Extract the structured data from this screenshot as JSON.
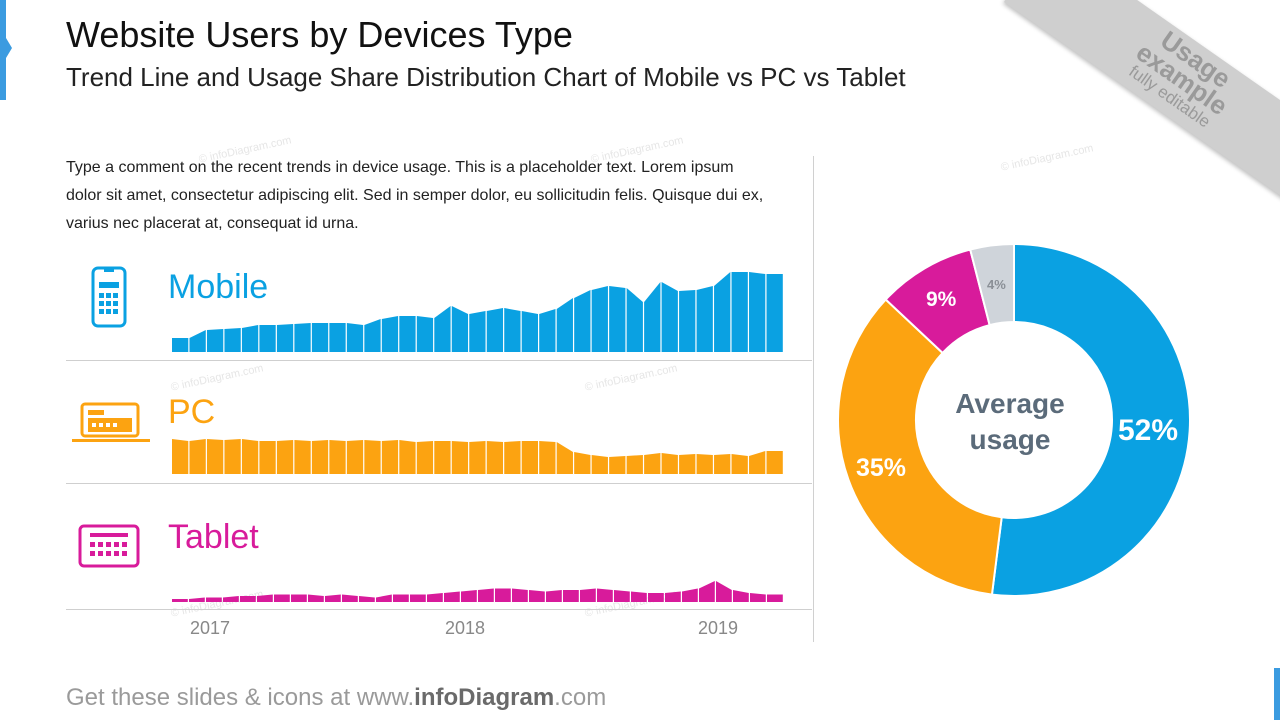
{
  "header": {
    "title": "Website Users by Devices Type",
    "subtitle": "Trend Line and Usage Share Distribution Chart of Mobile vs PC vs Tablet"
  },
  "ribbon": {
    "line1": "Usage",
    "line2": "example",
    "line3": "fully editable"
  },
  "comment": "Type a comment on the recent trends in device usage. This is a placeholder text. Lorem ipsum dolor sit amet, consectetur adipiscing elit. Sed in semper dolor, eu sollicitudin felis. Quisque dui ex, varius nec placerat at, consequat id urna.",
  "watermark": "© infoDiagram.com",
  "devices": {
    "mobile": {
      "label": "Mobile",
      "color": "#0aa1e2",
      "icon": "smartphone-icon"
    },
    "pc": {
      "label": "PC",
      "color": "#fca311",
      "icon": "laptop-icon"
    },
    "tablet": {
      "label": "Tablet",
      "color": "#d81b9b",
      "icon": "tablet-icon"
    }
  },
  "years": [
    "2017",
    "2018",
    "2019"
  ],
  "donut": {
    "center_line1": "Average",
    "center_line2": "usage"
  },
  "footer": {
    "prefix": "Get these slides & icons at www.",
    "brand": "infoDiagram",
    "suffix": ".com"
  },
  "chart_data": [
    {
      "type": "area",
      "title": "Mobile",
      "x_ticks": [
        "2017",
        "2018",
        "2019"
      ],
      "series": [
        {
          "name": "Mobile",
          "color": "#0aa1e2",
          "values": [
            14,
            14,
            22,
            23,
            24,
            27,
            27,
            28,
            29,
            29,
            29,
            27,
            33,
            36,
            36,
            34,
            46,
            38,
            41,
            44,
            41,
            38,
            43,
            54,
            62,
            66,
            64,
            50,
            70,
            61,
            62,
            66,
            80,
            80,
            78
          ]
        }
      ]
    },
    {
      "type": "area",
      "title": "PC",
      "series": [
        {
          "name": "PC",
          "color": "#fca311",
          "values": [
            35,
            33,
            35,
            34,
            35,
            33,
            33,
            34,
            33,
            34,
            33,
            34,
            33,
            34,
            32,
            33,
            33,
            32,
            33,
            32,
            33,
            33,
            32,
            22,
            19,
            17,
            18,
            19,
            21,
            19,
            20,
            19,
            20,
            18,
            23
          ]
        }
      ]
    },
    {
      "type": "area",
      "title": "Tablet",
      "series": [
        {
          "name": "Tablet",
          "color": "#d81b9b",
          "values": [
            2,
            2,
            3,
            3,
            4,
            4,
            5,
            5,
            5,
            4,
            5,
            4,
            3,
            5,
            5,
            5,
            6,
            7,
            8,
            9,
            9,
            8,
            7,
            8,
            8,
            9,
            8,
            7,
            6,
            6,
            7,
            9,
            14,
            8,
            6,
            5
          ]
        }
      ]
    },
    {
      "type": "pie",
      "title": "Average usage",
      "labels": [
        "52%",
        "35%",
        "9%",
        "4%"
      ],
      "values": [
        52,
        35,
        9,
        4
      ],
      "colors": [
        "#0aa1e2",
        "#fca311",
        "#d81b9b",
        "#cfd4da"
      ]
    }
  ]
}
